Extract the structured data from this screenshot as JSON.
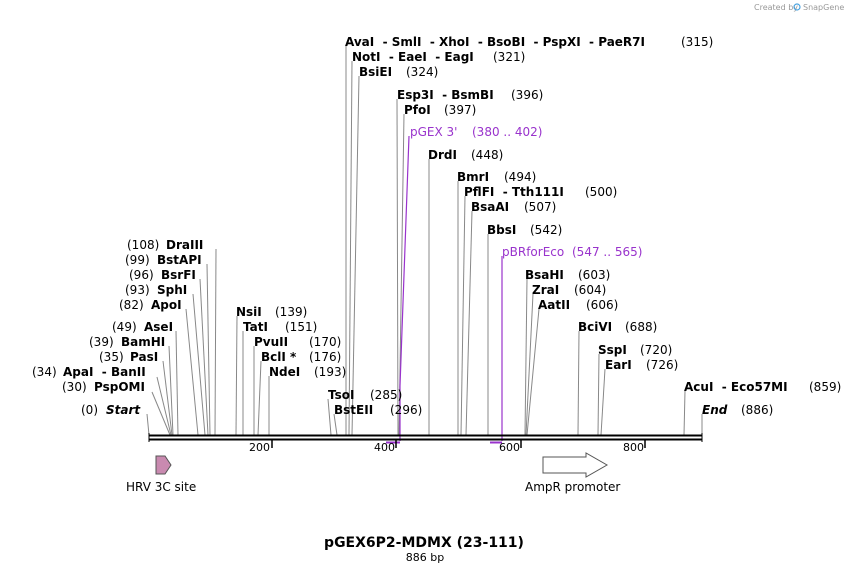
{
  "credit": {
    "text": "Created by",
    "brand": "SnapGene"
  },
  "plasmid": {
    "name": "pGEX6P2-MDMX (23-111)",
    "size": "886 bp"
  },
  "axis_ticks": [
    "200",
    "400",
    "600",
    "800"
  ],
  "sites": [
    {
      "id": "start",
      "pos_label": "(0)",
      "name": "Start",
      "italic": true
    },
    {
      "id": "psp",
      "pos_label": "(30)",
      "name": "PspOMI"
    },
    {
      "id": "apa",
      "pos_label": "(34)",
      "name": "ApaI  - BanII"
    },
    {
      "id": "pas",
      "pos_label": "(35)",
      "name": "PasI"
    },
    {
      "id": "bam",
      "pos_label": "(39)",
      "name": "BamHI"
    },
    {
      "id": "ase",
      "pos_label": "(49)",
      "name": "AseI"
    },
    {
      "id": "apo",
      "pos_label": "(82)",
      "name": "ApoI"
    },
    {
      "id": "sph",
      "pos_label": "(93)",
      "name": "SphI"
    },
    {
      "id": "bsrf",
      "pos_label": "(96)",
      "name": "BsrFI"
    },
    {
      "id": "bstap",
      "pos_label": "(99)",
      "name": "BstAPI"
    },
    {
      "id": "dra",
      "pos_label": "(108)",
      "name": "DraIII"
    },
    {
      "id": "nsi",
      "name": "NsiI",
      "pos_label": "(139)"
    },
    {
      "id": "tat",
      "name": "TatI",
      "pos_label": "(151)"
    },
    {
      "id": "pvu",
      "name": "PvuII",
      "pos_label": "(170)"
    },
    {
      "id": "bcl",
      "name": "BclI *",
      "pos_label": "(176)"
    },
    {
      "id": "nde",
      "name": "NdeI",
      "pos_label": "(193)"
    },
    {
      "id": "tso",
      "name": "TsoI",
      "pos_label": "(285)"
    },
    {
      "id": "bste",
      "name": "BstEII",
      "pos_label": "(296)"
    },
    {
      "id": "bsie",
      "name": "BsiEI",
      "pos_label": "(324)"
    },
    {
      "id": "not",
      "name": "NotI  - EaeI  - EagI",
      "pos_label": "(321)"
    },
    {
      "id": "ava",
      "name": "AvaI  - SmlI  - XhoI  - BsoBI  - PspXI  - PaeR7I",
      "pos_label": "(315)"
    },
    {
      "id": "esp",
      "name": "Esp3I  - BsmBI",
      "pos_label": "(396)"
    },
    {
      "id": "pfo",
      "name": "PfoI",
      "pos_label": "(397)"
    },
    {
      "id": "drd",
      "name": "DrdI",
      "pos_label": "(448)"
    },
    {
      "id": "bmr",
      "name": "BmrI",
      "pos_label": "(494)"
    },
    {
      "id": "pfl",
      "name": "PflFI  - Tth111I",
      "pos_label": "(500)"
    },
    {
      "id": "bsaa",
      "name": "BsaAI",
      "pos_label": "(507)"
    },
    {
      "id": "bbs",
      "name": "BbsI",
      "pos_label": "(542)"
    },
    {
      "id": "bsah",
      "name": "BsaHI",
      "pos_label": "(603)"
    },
    {
      "id": "zra",
      "name": "ZraI",
      "pos_label": "(604)"
    },
    {
      "id": "aat",
      "name": "AatII",
      "pos_label": "(606)"
    },
    {
      "id": "bcivi",
      "name": "BciVI",
      "pos_label": "(688)"
    },
    {
      "id": "ssp",
      "name": "SspI",
      "pos_label": "(720)"
    },
    {
      "id": "ear",
      "name": "EarI",
      "pos_label": "(726)"
    },
    {
      "id": "acu",
      "name": "AcuI  - Eco57MI",
      "pos_label": "(859)"
    },
    {
      "id": "end",
      "name": "End",
      "pos_label": "(886)",
      "italic": true
    }
  ],
  "primers": [
    {
      "id": "pgex",
      "name": "pGEX 3'",
      "range": "(380 .. 402)"
    },
    {
      "id": "pbr",
      "name": "pBRforEco",
      "range": "(547 .. 565)"
    }
  ],
  "features": [
    {
      "id": "hrv",
      "name": "HRV 3C site",
      "color": "#c98ab0"
    },
    {
      "id": "ampr",
      "name": "AmpR promoter",
      "color": "#ffffff"
    }
  ],
  "colors": {
    "primer": "#9933cc",
    "backbone": "#000000",
    "leader": "#888888"
  }
}
